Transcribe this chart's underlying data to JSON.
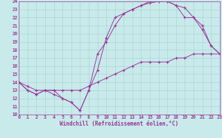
{
  "xlabel": "Windchill (Refroidissement éolien,°C)",
  "bg_color": "#c8eaea",
  "line_color": "#993399",
  "grid_color": "#aad4d4",
  "axis_color": "#993399",
  "xmin": 0,
  "xmax": 23,
  "ymin": 10,
  "ymax": 24,
  "line1_x": [
    0,
    1,
    2,
    3,
    4,
    5,
    6,
    7,
    8,
    9,
    10,
    11,
    12,
    13,
    14,
    15,
    16,
    17,
    18,
    19,
    20,
    21,
    22,
    23
  ],
  "line1_y": [
    14,
    13,
    12.5,
    13,
    13,
    12,
    11.5,
    10.5,
    13,
    15.5,
    19.5,
    22,
    22.5,
    23,
    23.5,
    24,
    24,
    24,
    23.5,
    22,
    22,
    21,
    18.5,
    17.5
  ],
  "line2_x": [
    0,
    1,
    2,
    3,
    4,
    5,
    6,
    7,
    8,
    9,
    10,
    11,
    12,
    13,
    14,
    15,
    16,
    17,
    18,
    19,
    20,
    21,
    22,
    23
  ],
  "line2_y": [
    14,
    13,
    12.5,
    13,
    12.5,
    12,
    11.5,
    10.5,
    13,
    17.5,
    19,
    21,
    22.5,
    23,
    23.5,
    23.8,
    24,
    24,
    23.5,
    23.2,
    22,
    20.5,
    18.5,
    17.5
  ],
  "line3_x": [
    0,
    1,
    2,
    3,
    4,
    5,
    6,
    7,
    8,
    9,
    10,
    11,
    12,
    13,
    14,
    15,
    16,
    17,
    18,
    19,
    20,
    21,
    22,
    23
  ],
  "line3_y": [
    14,
    13.5,
    13,
    13,
    13,
    13,
    13,
    13,
    13.5,
    14,
    14.5,
    15,
    15.5,
    16,
    16.5,
    16.5,
    16.5,
    16.5,
    17,
    17,
    17.5,
    17.5,
    17.5,
    17.5
  ],
  "tick_fontsize": 4.8,
  "label_fontsize": 5.5
}
